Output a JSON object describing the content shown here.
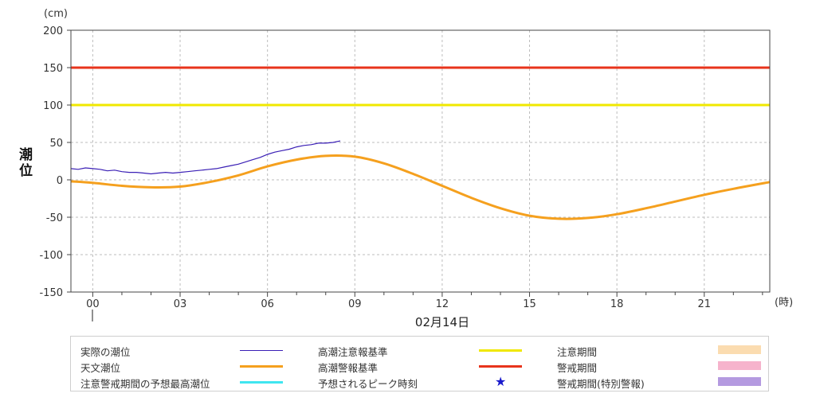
{
  "chart_data": {
    "type": "line",
    "unit_label": "(cm)",
    "ylabel": "潮位",
    "xlabel": "02月14日",
    "x_unit_label": "(時)",
    "ylim": [
      -150,
      200
    ],
    "yticks": [
      "200",
      "150",
      "100",
      "50",
      "0",
      "-50",
      "-100",
      "-150"
    ],
    "ytick_values": [
      200,
      150,
      100,
      50,
      0,
      -50,
      -100,
      -150
    ],
    "xlim": [
      -0.75,
      23.25
    ],
    "xticks": [
      "00",
      "03",
      "06",
      "09",
      "12",
      "15",
      "18",
      "21"
    ],
    "xtick_values": [
      0,
      3,
      6,
      9,
      12,
      15,
      18,
      21
    ],
    "grid": true,
    "series": [
      {
        "name": "実際の潮位",
        "color": "#3a1fb5",
        "x": [
          -0.75,
          -0.5,
          -0.25,
          0,
          0.25,
          0.5,
          0.75,
          1,
          1.25,
          1.5,
          1.75,
          2,
          2.25,
          2.5,
          2.75,
          3,
          3.25,
          3.5,
          3.75,
          4,
          4.25,
          4.5,
          4.75,
          5,
          5.25,
          5.5,
          5.75,
          6,
          6.25,
          6.5,
          6.75,
          7,
          7.25,
          7.5,
          7.75,
          8,
          8.25,
          8.5
        ],
        "values": [
          15,
          14,
          16,
          15,
          14,
          12,
          13,
          11,
          10,
          10,
          9,
          8,
          9,
          10,
          9,
          10,
          11,
          12,
          13,
          14,
          15,
          17,
          19,
          21,
          24,
          27,
          30,
          34,
          37,
          39,
          41,
          44,
          46,
          47,
          49,
          49,
          50,
          52
        ]
      },
      {
        "name": "天文潮位",
        "color": "#f5a01e",
        "x": [
          -0.75,
          0,
          1,
          2,
          3,
          4,
          5,
          6,
          7,
          8,
          9,
          10,
          11,
          12,
          13,
          14,
          15,
          16,
          17,
          18,
          19,
          20,
          21,
          22,
          23.25
        ],
        "values": [
          -2,
          -4,
          -8,
          -10,
          -9,
          -3,
          6,
          18,
          27,
          32,
          31,
          22,
          8,
          -8,
          -24,
          -38,
          -48,
          -52,
          -51,
          -46,
          -38,
          -29,
          -20,
          -12,
          -3
        ]
      },
      {
        "name": "高潮注意報基準",
        "color": "#f0e800",
        "constant": 100
      },
      {
        "name": "高潮警報基準",
        "color": "#e8341c",
        "constant": 150
      }
    ]
  },
  "legend": {
    "items": [
      {
        "label": "実際の潮位",
        "color": "#3a1fb5",
        "kind": "thin-line"
      },
      {
        "label": "天文潮位",
        "color": "#f5a01e",
        "kind": "thick-line"
      },
      {
        "label": "注意警戒期間の予想最高潮位",
        "color": "#3fe6f0",
        "kind": "thick-line"
      },
      {
        "label": "高潮注意報基準",
        "color": "#f0e800",
        "kind": "thick-line"
      },
      {
        "label": "高潮警報基準",
        "color": "#e8341c",
        "kind": "thick-line"
      },
      {
        "label": "予想されるピーク時刻",
        "color": "#1a1acc",
        "kind": "star",
        "glyph": "★"
      },
      {
        "label": "注意期間",
        "color": "#fbdcb0",
        "kind": "box"
      },
      {
        "label": "警戒期間",
        "color": "#f6b3cc",
        "kind": "box"
      },
      {
        "label": "警戒期間(特別警報)",
        "color": "#b49ae0",
        "kind": "box"
      }
    ]
  }
}
